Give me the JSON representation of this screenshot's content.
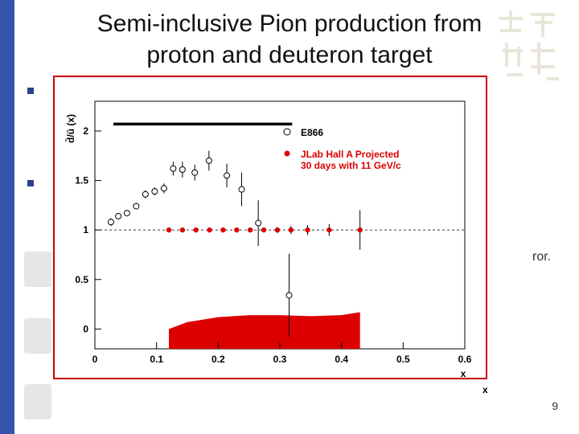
{
  "slide": {
    "title_line1": "Semi-inclusive Pion production from",
    "title_line2": "proton and deuteron target",
    "background_text": "ror.",
    "slide_number": "9",
    "bottom_axis_label": "x"
  },
  "colors": {
    "plot_frame": "#cc0000",
    "projection": "#dd0000",
    "left_bar": "#3355aa",
    "bullet": "#2a3f87"
  },
  "chart_data": {
    "type": "scatter",
    "ylabel": "d̄/ū (x)",
    "xlabel": "x",
    "xlim": [
      0,
      0.6
    ],
    "ylim": [
      -0.2,
      2.3
    ],
    "x_ticks": [
      "0",
      "0.1",
      "0.2",
      "0.3",
      "0.4",
      "0.5",
      "0.6"
    ],
    "y_ticks": [
      "0",
      "0.5",
      "1",
      "1.5",
      "2"
    ],
    "legend": [
      "E866",
      "JLab Hall A Projected",
      "30 days with 11 GeV/c"
    ],
    "reference_line": 1,
    "series": [
      {
        "name": "E866",
        "points": [
          {
            "x": 0.026,
            "y": 1.08,
            "err": 0.04
          },
          {
            "x": 0.038,
            "y": 1.14,
            "err": 0.03
          },
          {
            "x": 0.052,
            "y": 1.17,
            "err": 0.03
          },
          {
            "x": 0.067,
            "y": 1.24,
            "err": 0.03
          },
          {
            "x": 0.082,
            "y": 1.36,
            "err": 0.04
          },
          {
            "x": 0.097,
            "y": 1.39,
            "err": 0.04
          },
          {
            "x": 0.112,
            "y": 1.42,
            "err": 0.05
          },
          {
            "x": 0.127,
            "y": 1.62,
            "err": 0.07
          },
          {
            "x": 0.142,
            "y": 1.61,
            "err": 0.08
          },
          {
            "x": 0.162,
            "y": 1.58,
            "err": 0.08
          },
          {
            "x": 0.185,
            "y": 1.7,
            "err": 0.1
          },
          {
            "x": 0.214,
            "y": 1.55,
            "err": 0.12
          },
          {
            "x": 0.238,
            "y": 1.41,
            "err": 0.17
          },
          {
            "x": 0.265,
            "y": 1.07,
            "err": 0.23
          },
          {
            "x": 0.315,
            "y": 0.34,
            "err": 0.42
          }
        ]
      },
      {
        "name": "JLab Hall A Projected",
        "points": [
          {
            "x": 0.12,
            "y": 1.0,
            "err": 0.0
          },
          {
            "x": 0.142,
            "y": 1.0,
            "err": 0.0
          },
          {
            "x": 0.164,
            "y": 1.0,
            "err": 0.0
          },
          {
            "x": 0.186,
            "y": 1.0,
            "err": 0.0
          },
          {
            "x": 0.208,
            "y": 1.0,
            "err": 0.01
          },
          {
            "x": 0.23,
            "y": 1.0,
            "err": 0.01
          },
          {
            "x": 0.252,
            "y": 1.0,
            "err": 0.02
          },
          {
            "x": 0.274,
            "y": 1.0,
            "err": 0.02
          },
          {
            "x": 0.296,
            "y": 1.0,
            "err": 0.03
          },
          {
            "x": 0.318,
            "y": 1.0,
            "err": 0.04
          },
          {
            "x": 0.345,
            "y": 1.0,
            "err": 0.05
          },
          {
            "x": 0.38,
            "y": 1.0,
            "err": 0.06
          },
          {
            "x": 0.43,
            "y": 1.0,
            "err": 0.2
          }
        ]
      }
    ],
    "systematic_band": {
      "x": [
        0.12,
        0.15,
        0.2,
        0.25,
        0.3,
        0.35,
        0.4,
        0.43
      ],
      "y": [
        0.0,
        0.07,
        0.12,
        0.14,
        0.14,
        0.13,
        0.14,
        0.17
      ]
    },
    "top_band": {
      "x": [
        0.03,
        0.32
      ],
      "y": 2.07
    }
  }
}
